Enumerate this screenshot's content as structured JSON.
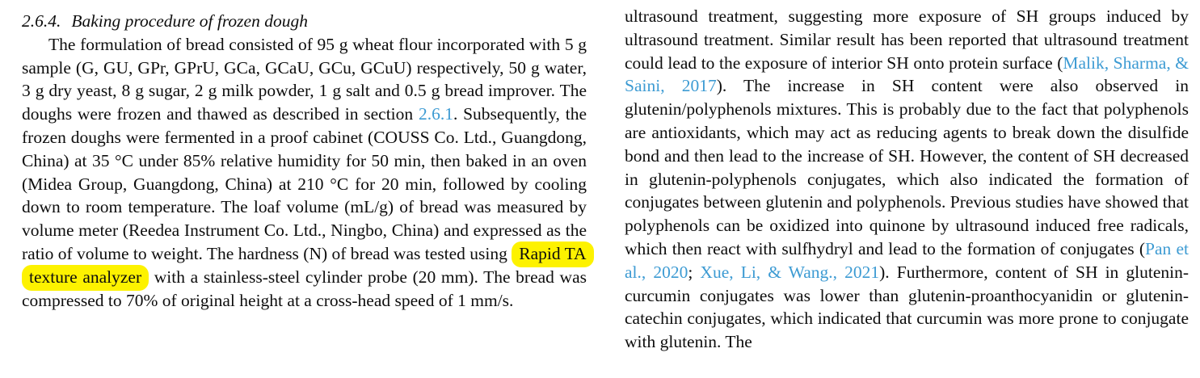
{
  "colors": {
    "background": "#ffffff",
    "text": "#0d0d0d",
    "link": "#3d9bd3",
    "highlight": "#fdf200"
  },
  "left_column": {
    "heading": {
      "number": "2.6.4.",
      "title": "Baking procedure of frozen dough"
    },
    "paragraph": {
      "runs": [
        {
          "type": "text",
          "text": "The formulation of bread consisted of 95 g wheat flour incorporated with 5 g sample (G, GU, GPr, GPrU, GCa, GCaU, GCu, GCuU) respectively, 50 g water, 3 g dry yeast, 8 g sugar, 2 g milk powder, 1 g salt and 0.5 g bread improver. The doughs were frozen and thawed as described in section "
        },
        {
          "type": "link",
          "text": "2.6.1"
        },
        {
          "type": "text",
          "text": ". Subsequently, the frozen doughs were fermented in a proof cabinet (COUSS Co. Ltd., Guangdong, China) at 35 °C under 85% relative humidity for 50 min, then baked in an oven (Midea Group, Guangdong, China) at 210 °C for 20 min, followed by cooling down to room temperature. The loaf volume (mL/g) of bread was measured by volume meter (Reedea Instrument Co. Ltd., Ningbo, China) and expressed as the ratio of volume to weight. The hardness (N) of bread was tested using "
        },
        {
          "type": "highlight",
          "text": "Rapid TA texture analyzer"
        },
        {
          "type": "text",
          "text": " with a stainless-steel cylinder probe (20 mm). The bread was compressed to 70% of original height at a cross-head speed of 1 mm/s."
        }
      ]
    }
  },
  "right_column": {
    "paragraph": {
      "runs": [
        {
          "type": "text",
          "text": "ultrasound treatment, suggesting more exposure of SH groups induced by ultrasound treatment. Similar result has been reported that ultrasound treatment could lead to the exposure of interior SH onto protein surface ("
        },
        {
          "type": "link",
          "text": "Malik, Sharma, & Saini, 2017"
        },
        {
          "type": "text",
          "text": "). The increase in SH content were also observed in glutenin/polyphenols mixtures. This is probably due to the fact that polyphenols are antioxidants, which may act as reducing agents to break down the disulfide bond and then lead to the increase of SH. However, the content of SH decreased in glutenin-polyphenols conjugates, which also indicated the formation of conjugates between glutenin and polyphenols. Previous studies have showed that polyphenols can be oxidized into quinone by ultrasound induced free radicals, which then react with sulfhydryl and lead to the formation of conjugates ("
        },
        {
          "type": "link",
          "text": "Pan et al., 2020"
        },
        {
          "type": "text",
          "text": "; "
        },
        {
          "type": "link",
          "text": "Xue, Li, & Wang., 2021"
        },
        {
          "type": "text",
          "text": "). Furthermore, content of SH in glutenin-curcumin conjugates was lower than glutenin-proanthocyanidin or glutenin-catechin conjugates, which indicated that curcumin was more prone to conjugate with glutenin. The"
        }
      ]
    }
  }
}
